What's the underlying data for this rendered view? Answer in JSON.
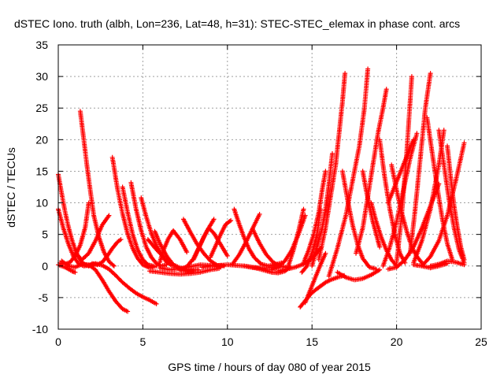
{
  "chart_data": {
    "type": "scatter",
    "title": "dSTEC Iono. truth (albh, Lon=236, Lat=48, h=31): STEC-STEC_elemax in phase cont. arcs",
    "xlabel": "GPS time / hours of day 080 of year 2015",
    "ylabel": "dSTEC  / TECUs",
    "xlim": [
      0,
      25
    ],
    "ylim": [
      -10,
      35
    ],
    "xticks": [
      0,
      5,
      10,
      15,
      20,
      25
    ],
    "yticks": [
      -10,
      -5,
      0,
      5,
      10,
      15,
      20,
      25,
      30,
      35
    ],
    "grid": true,
    "marker": "+",
    "color": "#ff0000",
    "series": [
      {
        "x": [
          0.0,
          0.2,
          0.4,
          0.6,
          0.8,
          1.0,
          1.2,
          1.4,
          1.6,
          1.8
        ],
        "y": [
          14.5,
          11.5,
          8.6,
          6.2,
          4.2,
          2.6,
          1.4,
          0.6,
          0.2,
          0.0
        ]
      },
      {
        "x": [
          0.0,
          0.3,
          0.6,
          0.9,
          1.2,
          1.5,
          1.8,
          2.0
        ],
        "y": [
          9.0,
          6.0,
          3.5,
          1.5,
          0.4,
          0.0,
          0.1,
          0.3
        ]
      },
      {
        "x": [
          0.1,
          0.4,
          0.7,
          1.0,
          1.3,
          1.6,
          1.8
        ],
        "y": [
          0.5,
          0.3,
          0.6,
          1.6,
          3.3,
          6.2,
          10.0
        ]
      },
      {
        "x": [
          0.0,
          0.4,
          0.8,
          1.0
        ],
        "y": [
          0.2,
          -0.2,
          -0.8,
          -1.0
        ]
      },
      {
        "x": [
          0.2,
          0.6,
          1.0,
          1.4,
          1.8,
          2.2,
          2.6,
          3.0,
          3.4,
          3.8,
          4.1
        ],
        "y": [
          0.8,
          0.0,
          -0.2,
          0.3,
          0.2,
          -0.6,
          -2.2,
          -4.0,
          -5.6,
          -6.8,
          -7.2
        ]
      },
      {
        "x": [
          1.3,
          1.5,
          1.7,
          1.9,
          2.1,
          2.4,
          2.7,
          3.0,
          3.3
        ],
        "y": [
          24.5,
          20.2,
          15.8,
          11.8,
          8.0,
          4.6,
          2.2,
          0.7,
          0.0
        ]
      },
      {
        "x": [
          1.8,
          2.2,
          2.6,
          3.0,
          3.4,
          3.8,
          4.2,
          4.6,
          5.0,
          5.4,
          5.8
        ],
        "y": [
          0.0,
          0.4,
          0.1,
          -0.5,
          -1.5,
          -2.6,
          -3.5,
          -4.3,
          -4.9,
          -5.4,
          -6.0
        ]
      },
      {
        "x": [
          1.0,
          1.4,
          1.8,
          2.2,
          2.6,
          3.0
        ],
        "y": [
          2.0,
          1.0,
          2.0,
          4.0,
          6.5,
          8.0
        ]
      },
      {
        "x": [
          2.0,
          2.3,
          2.6,
          2.9,
          3.2,
          3.5,
          3.7
        ],
        "y": [
          0.4,
          0.2,
          0.6,
          1.6,
          2.8,
          3.8,
          4.2
        ]
      },
      {
        "x": [
          3.2,
          3.5,
          3.8,
          4.1,
          4.4,
          4.7,
          5.0,
          5.4,
          5.8
        ],
        "y": [
          17.2,
          12.2,
          8.3,
          5.1,
          2.8,
          1.2,
          0.2,
          -0.3,
          0.0
        ]
      },
      {
        "x": [
          3.8,
          4.1,
          4.4,
          4.7,
          5.0,
          5.3,
          5.6
        ],
        "y": [
          12.5,
          8.5,
          5.0,
          2.5,
          1.0,
          0.2,
          0.0
        ]
      },
      {
        "x": [
          4.3,
          4.6,
          4.9,
          5.2,
          5.5,
          5.8,
          6.1,
          6.4
        ],
        "y": [
          13.2,
          9.0,
          5.6,
          3.0,
          1.4,
          0.4,
          0.0,
          0.2
        ]
      },
      {
        "x": [
          4.9,
          5.2,
          5.5,
          5.8,
          6.1,
          6.4,
          6.8
        ],
        "y": [
          10.8,
          7.8,
          5.2,
          3.2,
          1.8,
          0.6,
          0.0
        ]
      },
      {
        "x": [
          5.3,
          5.8,
          6.3,
          6.8,
          7.3,
          7.8,
          8.3
        ],
        "y": [
          4.2,
          2.6,
          1.2,
          0.2,
          -0.4,
          -0.6,
          -0.6
        ]
      },
      {
        "x": [
          5.7,
          6.0,
          6.4,
          6.8,
          7.2,
          7.6,
          8.0
        ],
        "y": [
          5.5,
          3.6,
          1.6,
          0.2,
          -0.6,
          -0.8,
          -0.8
        ]
      },
      {
        "x": [
          6.0,
          6.2,
          6.5,
          6.8,
          7.2,
          7.6
        ],
        "y": [
          0.6,
          2.4,
          4.3,
          5.6,
          4.2,
          2.2
        ]
      },
      {
        "x": [
          6.0,
          6.6,
          7.2,
          7.8,
          8.4,
          9.0,
          9.6
        ],
        "y": [
          -0.3,
          -0.6,
          -0.4,
          -0.1,
          0.2,
          0.1,
          -0.2
        ]
      },
      {
        "x": [
          5.4,
          6.0,
          6.6,
          7.2,
          7.8,
          8.4,
          9.0,
          9.5
        ],
        "y": [
          -0.8,
          -1.0,
          -1.2,
          -1.3,
          -1.2,
          -1.0,
          -0.6,
          -0.4
        ]
      },
      {
        "x": [
          7.4,
          7.8,
          8.2,
          8.6,
          9.0,
          9.4,
          9.8
        ],
        "y": [
          7.4,
          5.4,
          3.5,
          2.0,
          0.8,
          0.1,
          0.0
        ]
      },
      {
        "x": [
          7.2,
          7.6,
          8.0,
          8.4,
          8.8,
          9.2
        ],
        "y": [
          -0.6,
          -0.1,
          1.2,
          3.4,
          5.6,
          7.4
        ]
      },
      {
        "x": [
          8.0,
          8.3,
          8.6,
          8.9,
          9.2,
          9.6,
          10.0
        ],
        "y": [
          1.0,
          2.8,
          4.6,
          6.0,
          5.2,
          3.4,
          1.6
        ]
      },
      {
        "x": [
          9.0,
          9.3,
          9.6,
          9.9,
          10.2
        ],
        "y": [
          1.4,
          3.2,
          5.0,
          6.6,
          7.2
        ]
      },
      {
        "x": [
          8.5,
          9.0,
          9.5,
          10.0,
          10.5,
          11.0,
          11.5,
          12.0,
          12.5,
          13.0
        ],
        "y": [
          -0.2,
          0.0,
          0.1,
          0.2,
          0.1,
          0.0,
          -0.2,
          -0.3,
          -0.3,
          -0.2
        ]
      },
      {
        "x": [
          10.4,
          10.7,
          11.0,
          11.3,
          11.6,
          12.0,
          12.4,
          12.8,
          13.2
        ],
        "y": [
          9.0,
          6.6,
          4.4,
          2.6,
          1.3,
          0.3,
          0.0,
          0.2,
          0.5
        ]
      },
      {
        "x": [
          10.3,
          10.7,
          11.1,
          11.5,
          11.9
        ],
        "y": [
          0.3,
          1.8,
          3.8,
          6.0,
          8.2
        ]
      },
      {
        "x": [
          11.5,
          11.9,
          12.3,
          12.7,
          13.1,
          13.5
        ],
        "y": [
          5.8,
          3.6,
          1.8,
          0.6,
          0.0,
          -0.2
        ]
      },
      {
        "x": [
          11.0,
          11.4,
          11.8,
          12.2,
          12.6,
          13.0,
          13.4,
          13.7
        ],
        "y": [
          0.0,
          -0.2,
          -0.4,
          -0.7,
          -1.0,
          -1.1,
          -0.8,
          -0.2
        ]
      },
      {
        "x": [
          12.6,
          13.0,
          13.4,
          13.8,
          14.2,
          14.6
        ],
        "y": [
          -0.6,
          -0.2,
          0.8,
          2.5,
          5.0,
          8.0
        ]
      },
      {
        "x": [
          13.6,
          13.9,
          14.2,
          14.5
        ],
        "y": [
          0.0,
          2.5,
          5.5,
          9.0
        ]
      },
      {
        "x": [
          13.0,
          13.5,
          14.0,
          14.5,
          15.0,
          15.5
        ],
        "y": [
          -0.8,
          -0.5,
          -0.2,
          0.3,
          1.2,
          2.8
        ]
      },
      {
        "x": [
          14.3,
          14.6,
          14.9,
          15.2,
          15.5,
          15.8,
          16.1,
          16.5,
          16.9
        ],
        "y": [
          -6.5,
          -5.5,
          -4.5,
          -3.8,
          -3.2,
          -2.6,
          -2.2,
          -1.8,
          -1.5
        ]
      },
      {
        "x": [
          14.6,
          14.9,
          15.2,
          15.5,
          15.8
        ],
        "y": [
          -5.8,
          -3.8,
          -1.8,
          0.2,
          2.0
        ]
      },
      {
        "x": [
          14.4,
          14.7,
          15.0,
          15.3,
          15.5
        ],
        "y": [
          -1.0,
          0.0,
          2.0,
          5.0,
          9.0
        ]
      },
      {
        "x": [
          14.5,
          14.8,
          15.1,
          15.4,
          15.6,
          15.8
        ],
        "y": [
          0.5,
          2.5,
          5.0,
          8.5,
          12.0,
          15.0
        ]
      },
      {
        "x": [
          15.0,
          15.3,
          15.6,
          15.8,
          16.0,
          16.2
        ],
        "y": [
          0.0,
          3.0,
          6.0,
          9.0,
          13.0,
          17.8
        ]
      },
      {
        "x": [
          15.4,
          15.8,
          16.1,
          16.4,
          16.6,
          16.8,
          16.95
        ],
        "y": [
          1.0,
          6.0,
          11.0,
          16.0,
          21.0,
          26.0,
          30.5
        ]
      },
      {
        "x": [
          16.0,
          16.5,
          17.0,
          17.4,
          17.8,
          18.1,
          18.3
        ],
        "y": [
          -1.6,
          2.8,
          8.0,
          13.5,
          19.0,
          25.0,
          31.2
        ]
      },
      {
        "x": [
          16.8,
          17.1,
          17.4,
          17.7,
          18.0,
          18.4,
          18.8
        ],
        "y": [
          15.0,
          10.5,
          6.5,
          3.4,
          1.2,
          -0.2,
          -0.5
        ]
      },
      {
        "x": [
          16.5,
          17.0,
          17.5,
          18.0,
          18.5,
          19.0
        ],
        "y": [
          -1.0,
          -1.8,
          -2.2,
          -2.0,
          -1.4,
          -0.6
        ]
      },
      {
        "x": [
          17.6,
          18.0,
          18.3,
          18.6,
          18.9,
          19.2,
          19.4
        ],
        "y": [
          2.0,
          6.0,
          11.0,
          16.0,
          21.0,
          25.0,
          28.0
        ]
      },
      {
        "x": [
          18.0,
          18.2,
          18.4,
          18.6,
          18.8,
          19.0
        ],
        "y": [
          15.0,
          12.0,
          9.5,
          7.0,
          5.0,
          3.0
        ]
      },
      {
        "x": [
          18.5,
          18.8,
          19.1,
          19.4,
          19.7,
          20.0
        ],
        "y": [
          10.0,
          7.0,
          4.5,
          2.5,
          1.0,
          0.0
        ]
      },
      {
        "x": [
          19.0,
          19.3,
          19.6,
          19.9,
          20.2,
          20.5
        ],
        "y": [
          20.0,
          14.0,
          9.0,
          5.0,
          2.0,
          0.5
        ]
      },
      {
        "x": [
          19.2,
          19.6,
          20.0,
          20.4,
          20.8,
          21.2
        ],
        "y": [
          0.0,
          3.0,
          7.0,
          12.0,
          17.0,
          21.0
        ]
      },
      {
        "x": [
          19.5,
          19.8,
          20.1,
          20.4,
          20.7,
          21.0
        ],
        "y": [
          10.0,
          12.0,
          14.0,
          16.0,
          18.0,
          20.0
        ]
      },
      {
        "x": [
          20.0,
          20.3,
          20.6,
          20.9
        ],
        "y": [
          0.5,
          8.0,
          18.0,
          30.0
        ]
      },
      {
        "x": [
          19.7,
          20.0,
          20.3,
          20.6,
          20.9,
          21.2,
          21.5
        ],
        "y": [
          16.0,
          12.0,
          8.5,
          5.5,
          3.0,
          1.5,
          0.5
        ]
      },
      {
        "x": [
          19.5,
          20.0,
          20.5,
          21.0,
          21.5,
          22.0,
          22.5
        ],
        "y": [
          -0.5,
          -0.2,
          1.0,
          3.0,
          6.0,
          9.5,
          13.0
        ]
      },
      {
        "x": [
          20.8,
          21.1,
          21.4,
          21.7,
          22.0
        ],
        "y": [
          2.0,
          9.0,
          17.0,
          25.0,
          30.5
        ]
      },
      {
        "x": [
          21.0,
          21.5,
          22.0,
          22.5,
          22.8
        ],
        "y": [
          0.5,
          4.0,
          9.0,
          16.0,
          21.5
        ]
      },
      {
        "x": [
          21.8,
          22.1,
          22.4,
          22.7,
          23.0,
          23.3
        ],
        "y": [
          23.5,
          18.0,
          12.5,
          7.5,
          3.5,
          1.0
        ]
      },
      {
        "x": [
          21.5,
          22.0,
          22.5,
          23.0,
          23.5,
          24.0
        ],
        "y": [
          0.0,
          1.5,
          4.0,
          8.0,
          13.5,
          19.5
        ]
      },
      {
        "x": [
          22.5,
          22.8,
          23.1,
          23.4,
          23.7,
          24.0
        ],
        "y": [
          21.5,
          16.0,
          10.5,
          6.0,
          2.5,
          0.5
        ]
      },
      {
        "x": [
          23.0,
          23.2,
          23.4,
          23.6,
          23.8,
          24.0
        ],
        "y": [
          19.0,
          14.0,
          9.5,
          6.0,
          3.0,
          1.0
        ]
      },
      {
        "x": [
          22.0,
          22.5,
          23.0,
          23.5,
          24.0
        ],
        "y": [
          0.0,
          0.3,
          0.8,
          0.6,
          0.2
        ]
      },
      {
        "x": [
          21.0,
          21.5,
          22.0,
          22.5,
          23.0
        ],
        "y": [
          0.2,
          0.0,
          -0.3,
          0.0,
          0.4
        ]
      }
    ]
  }
}
